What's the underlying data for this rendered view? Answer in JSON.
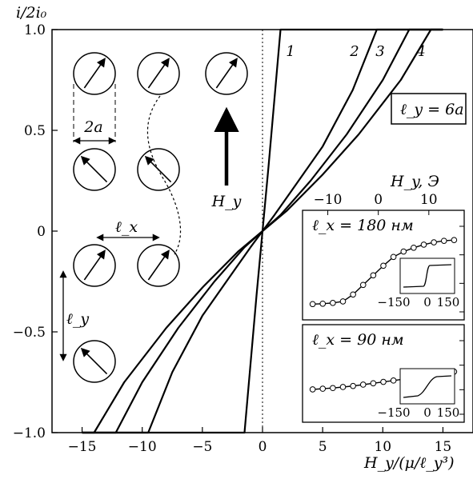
{
  "chart_data": {
    "type": "line",
    "title": "",
    "ylabel": "i/2i₀",
    "xlabel": "H_y/(μ/ℓ_y³)",
    "xlim": [
      -17.5,
      17.5
    ],
    "ylim": [
      -1.0,
      1.0
    ],
    "x_ticks": [
      "−15",
      "−10",
      "−5",
      "0",
      "5",
      "10",
      "15"
    ],
    "y_ticks": [
      "1.0",
      "0.5",
      "0",
      "−0.5",
      "−1.0"
    ],
    "box_label": "ℓ_y = 6a",
    "series": [
      {
        "name": "1",
        "x": [
          -1.5,
          -0.5,
          0,
          0.5,
          1.5
        ],
        "y": [
          -1.0,
          -0.32,
          0.0,
          0.32,
          1.0
        ]
      },
      {
        "name": "2",
        "x": [
          -9.5,
          -7.5,
          -5,
          -3,
          -1,
          0,
          1,
          3,
          5,
          7.5,
          9.5
        ],
        "y": [
          -1.0,
          -0.7,
          -0.42,
          -0.25,
          -0.08,
          0.0,
          0.08,
          0.25,
          0.42,
          0.7,
          1.0
        ]
      },
      {
        "name": "3",
        "x": [
          -12.2,
          -10,
          -7,
          -4,
          -1.5,
          0,
          1.5,
          4,
          7,
          10,
          12.2
        ],
        "y": [
          -1.0,
          -0.75,
          -0.48,
          -0.25,
          -0.08,
          0.0,
          0.08,
          0.25,
          0.48,
          0.75,
          1.0
        ]
      },
      {
        "name": "4",
        "x": [
          -14,
          -11.5,
          -8,
          -5,
          -2,
          0,
          2,
          5,
          8,
          11.5,
          14
        ],
        "y": [
          -1.0,
          -0.75,
          -0.48,
          -0.28,
          -0.1,
          0.0,
          0.1,
          0.28,
          0.48,
          0.75,
          1.0
        ]
      }
    ],
    "annotations": {
      "left_segment_start_x": -15.0,
      "right_segment_end_x": 15.0,
      "zero_line": "dotted vertical at x=0"
    },
    "inset": {
      "top_axis_label": "H_y, Э",
      "top_ticks": [
        "−10",
        "0",
        "10"
      ],
      "panels": [
        {
          "label": "ℓ_x = 180 нм",
          "points": [
            [
              -13,
              -0.85
            ],
            [
              -11,
              -0.84
            ],
            [
              -9,
              -0.82
            ],
            [
              -7,
              -0.78
            ],
            [
              -5,
              -0.6
            ],
            [
              -3,
              -0.35
            ],
            [
              -1,
              -0.1
            ],
            [
              1,
              0.15
            ],
            [
              3,
              0.38
            ],
            [
              5,
              0.52
            ],
            [
              7,
              0.62
            ],
            [
              9,
              0.7
            ],
            [
              11,
              0.76
            ],
            [
              13,
              0.8
            ],
            [
              15,
              0.82
            ]
          ],
          "mini_ticks": [
            "−150",
            "0",
            "150"
          ]
        },
        {
          "label": "ℓ_x = 90 нм",
          "points": [
            [
              -13,
              -0.28
            ],
            [
              -11,
              -0.26
            ],
            [
              -9,
              -0.24
            ],
            [
              -7,
              -0.21
            ],
            [
              -5,
              -0.18
            ],
            [
              -3,
              -0.14
            ],
            [
              -1,
              -0.1
            ],
            [
              1,
              -0.06
            ],
            [
              3,
              -0.02
            ],
            [
              5,
              0.02
            ],
            [
              7,
              0.06
            ],
            [
              9,
              0.1
            ],
            [
              11,
              0.14
            ],
            [
              13,
              0.19
            ],
            [
              15,
              0.24
            ]
          ],
          "mini_ticks": [
            "−150",
            "0",
            "150"
          ]
        }
      ]
    },
    "schematic": {
      "spacing_label": "2a",
      "lx_label": "ℓ_x",
      "ly_label": "ℓ_y",
      "field_label": "H_y"
    },
    "curve_labels": [
      "1",
      "2",
      "3",
      "4"
    ]
  }
}
